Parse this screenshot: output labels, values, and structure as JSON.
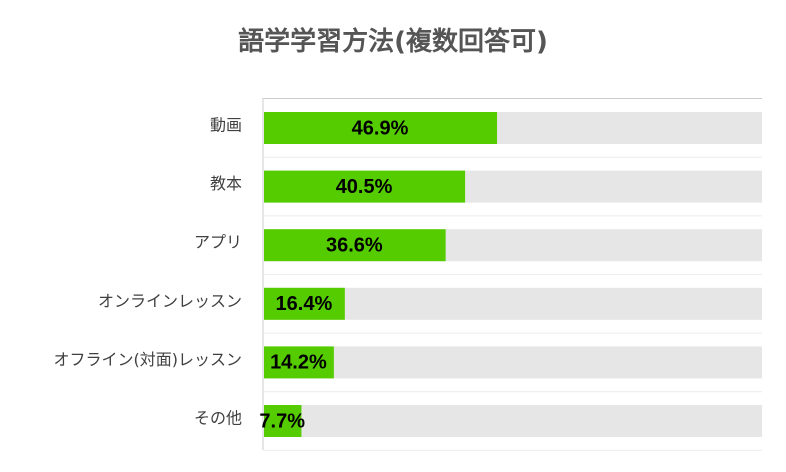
{
  "chart_data": {
    "type": "bar",
    "orientation": "horizontal",
    "title": "語学学習方法(複数回答可)",
    "xlabel": "",
    "ylabel": "",
    "xlim": [
      0,
      100
    ],
    "categories": [
      "動画",
      "教本",
      "アプリ",
      "オンラインレッスン",
      "オフライン(対面)レッスン",
      "その他"
    ],
    "values": [
      46.9,
      40.5,
      36.6,
      16.4,
      14.2,
      7.7
    ],
    "value_labels": [
      "46.9%",
      "40.5%",
      "36.6%",
      "16.4%",
      "14.2%",
      "7.7%"
    ],
    "grid": false,
    "legend": "none",
    "colors": {
      "bar": "#55cc00",
      "track": "#e6e6e6",
      "axis": "#cccccc",
      "title": "#555555",
      "category_text": "#404040",
      "value_text": "#000000"
    }
  }
}
